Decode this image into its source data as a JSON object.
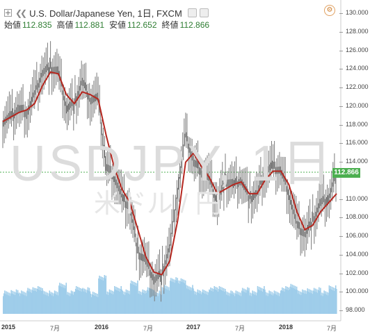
{
  "header": {
    "symbol_title": "U.S. Dollar/Japanese Yen, 1日, FXCM",
    "ohlc": [
      {
        "label": "始値",
        "value": "112.835"
      },
      {
        "label": "高値",
        "value": "112.881"
      },
      {
        "label": "安値",
        "value": "112.652"
      },
      {
        "label": "終値",
        "value": "112.866"
      }
    ]
  },
  "watermark": {
    "symbol": "USDJPY, 1日",
    "sub": "米ドル / 円"
  },
  "price_axis": {
    "labels": [
      "130.000",
      "128.000",
      "126.000",
      "124.000",
      "122.000",
      "120.000",
      "118.000",
      "116.000",
      "114.000",
      "110.000",
      "108.000",
      "106.000",
      "104.000",
      "102.000",
      "100.000",
      "98.000"
    ],
    "current_price": "112.866"
  },
  "time_axis": {
    "labels": [
      "2015",
      "7月",
      "2016",
      "7月",
      "2017",
      "7月",
      "2018",
      "7月"
    ]
  },
  "colors": {
    "price_line": "#7a7a7a",
    "ma_line": "#b5271f",
    "volume": "#9fcdea",
    "current_tag": "#4caf50",
    "accent": "#2e7d32"
  },
  "chart_data": {
    "type": "line",
    "title": "U.S. Dollar/Japanese Yen, 1日, FXCM",
    "x": [
      "2015-01",
      "2015-02",
      "2015-03",
      "2015-04",
      "2015-05",
      "2015-06",
      "2015-07",
      "2015-08",
      "2015-09",
      "2015-10",
      "2015-11",
      "2015-12",
      "2016-01",
      "2016-02",
      "2016-03",
      "2016-04",
      "2016-05",
      "2016-06",
      "2016-07",
      "2016-08",
      "2016-09",
      "2016-10",
      "2016-11",
      "2016-12",
      "2017-01",
      "2017-02",
      "2017-03",
      "2017-04",
      "2017-05",
      "2017-06",
      "2017-07",
      "2017-08",
      "2017-09",
      "2017-10",
      "2017-11",
      "2017-12",
      "2018-01",
      "2018-02",
      "2018-03",
      "2018-04",
      "2018-05",
      "2018-06",
      "2018-07"
    ],
    "series": [
      {
        "values": [
          118.5,
          119.0,
          120.0,
          119.5,
          121.5,
          124.0,
          124.5,
          124.0,
          120.0,
          120.5,
          123.0,
          121.0,
          121.0,
          113.5,
          112.5,
          110.0,
          109.0,
          104.0,
          103.0,
          101.0,
          101.5,
          104.5,
          111.0,
          117.0,
          114.0,
          113.0,
          112.0,
          109.5,
          112.0,
          111.5,
          112.0,
          110.0,
          110.5,
          113.0,
          113.5,
          113.0,
          110.5,
          107.0,
          106.0,
          107.5,
          109.5,
          110.0,
          112.8
        ]
      },
      {
        "values": [
          118.5,
          119.0,
          119.5,
          119.8,
          120.5,
          122.5,
          124.0,
          123.8,
          121.5,
          120.5,
          121.8,
          121.5,
          121.0,
          117.0,
          113.5,
          111.0,
          109.5,
          106.5,
          103.5,
          101.8,
          101.5,
          103.0,
          107.5,
          114.0,
          115.0,
          113.5,
          112.3,
          110.5,
          111.0,
          111.5,
          111.8,
          110.5,
          110.5,
          112.0,
          113.0,
          113.0,
          111.5,
          108.5,
          106.5,
          107.0,
          108.5,
          109.5,
          110.5
        ]
      }
    ],
    "ylim": [
      97,
      131
    ],
    "grid": false
  }
}
